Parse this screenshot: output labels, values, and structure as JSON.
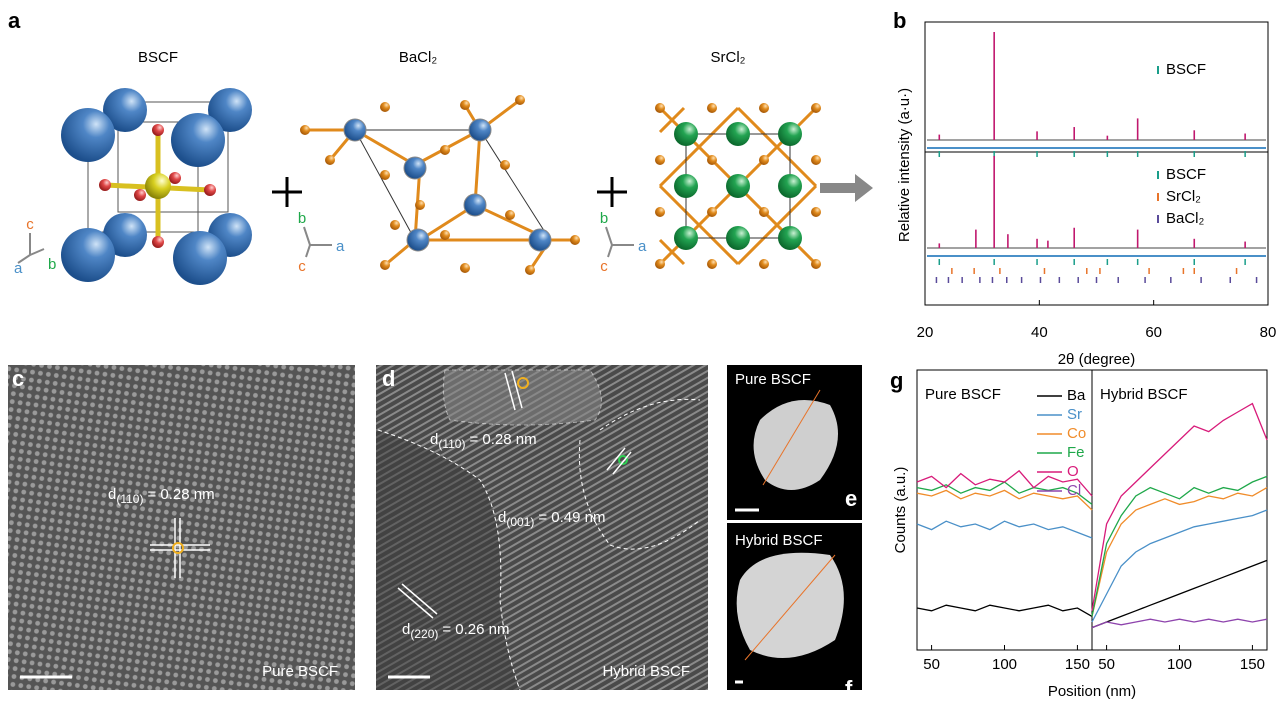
{
  "panels": {
    "a": "a",
    "b": "b",
    "c": "c",
    "d": "d",
    "e": "e",
    "f": "f",
    "g": "g"
  },
  "structures": [
    {
      "name": "BSCF",
      "axes": [
        "c",
        "a",
        "b"
      ]
    },
    {
      "name": "BaCl₂",
      "axes": [
        "b",
        "c",
        "a"
      ]
    },
    {
      "name": "SrCl₂",
      "axes": [
        "b",
        "c",
        "a"
      ]
    }
  ],
  "micrographs": {
    "c": {
      "d_labels": [
        {
          "d": "d",
          "index": "(110)",
          "text": "= 0.28 nm"
        }
      ],
      "caption": "Pure BSCF"
    },
    "d": {
      "d_labels": [
        {
          "d": "d",
          "index": "(110)",
          "text": "= 0.28 nm"
        },
        {
          "d": "d",
          "index": "(001)",
          "text": "= 0.49 nm"
        },
        {
          "d": "d",
          "index": "(220)",
          "text": "= 0.26 nm"
        }
      ],
      "caption": "Hybrid BSCF"
    },
    "e": {
      "caption": "Pure BSCF"
    },
    "f": {
      "caption": "Hybrid BSCF"
    }
  },
  "chart_data": [
    {
      "type": "xrd",
      "xlabel": "2θ (degree)",
      "ylabel": "Relative intensity (a·u·)",
      "xlim": [
        20,
        80
      ],
      "xticks": [
        20,
        40,
        60,
        80
      ],
      "color": "#c0186e",
      "patterns": [
        {
          "x": [
            22.5,
            32.1,
            39.6,
            46.1,
            51.9,
            57.2,
            67.1,
            76.0
          ],
          "values": [
            5,
            100,
            8,
            12,
            4,
            20,
            9,
            6
          ],
          "references": [
            {
              "name": "BSCF",
              "color": "#1a9e8a",
              "x": [
                22.5,
                32.1,
                39.6,
                46.1,
                51.9,
                57.2,
                67.1,
                76.0
              ]
            }
          ]
        },
        {
          "x": [
            22.5,
            28.9,
            32.1,
            34.5,
            39.6,
            41.5,
            46.1,
            57.2,
            67.1,
            76.0
          ],
          "values": [
            5,
            20,
            100,
            15,
            10,
            8,
            22,
            20,
            10,
            7
          ],
          "references": [
            {
              "name": "BSCF",
              "color": "#1a9e8a",
              "x": [
                22.5,
                32.1,
                39.6,
                46.1,
                51.9,
                57.2,
                67.1,
                76.0
              ]
            },
            {
              "name": "SrCl₂",
              "color": "#e8742a",
              "x": [
                24.7,
                28.6,
                33.1,
                40.9,
                48.3,
                50.6,
                59.2,
                65.2,
                67.1,
                74.5
              ]
            },
            {
              "name": "BaCl₂",
              "color": "#5a4b9a",
              "x": [
                22.0,
                24.1,
                26.5,
                29.6,
                31.8,
                34.3,
                36.9,
                40.2,
                43.5,
                46.8,
                50.0,
                53.8,
                58.5,
                63.0,
                68.3,
                73.4,
                78.0
              ]
            }
          ]
        }
      ]
    },
    {
      "type": "line",
      "xlabel": "Position (nm)",
      "ylabel": "Counts (a.u.)",
      "xlim": [
        40,
        160
      ],
      "xticks": [
        50,
        100,
        150
      ],
      "ylim": [
        0,
        100
      ],
      "segments": [
        "Pure BSCF",
        "Hybrid BSCF"
      ],
      "x": [
        40,
        50,
        60,
        70,
        80,
        90,
        100,
        110,
        120,
        130,
        140,
        150,
        160
      ],
      "series": [
        {
          "name": "Ba",
          "color": "#000000",
          "values": [
            15,
            14,
            16,
            15,
            14,
            16,
            15,
            14,
            15,
            16,
            14,
            15,
            12
          ],
          "values_hybrid": [
            8,
            10,
            12,
            14,
            16,
            18,
            20,
            22,
            24,
            26,
            28,
            30,
            32
          ]
        },
        {
          "name": "Sr",
          "color": "#4a90c8",
          "values": [
            45,
            43,
            46,
            44,
            45,
            43,
            46,
            44,
            45,
            43,
            44,
            42,
            40
          ],
          "values_hybrid": [
            10,
            20,
            30,
            35,
            38,
            40,
            42,
            44,
            45,
            46,
            47,
            48,
            50
          ]
        },
        {
          "name": "Co",
          "color": "#f08c2a",
          "values": [
            56,
            55,
            57,
            54,
            56,
            55,
            57,
            54,
            56,
            55,
            54,
            55,
            50
          ],
          "values_hybrid": [
            12,
            35,
            45,
            50,
            52,
            54,
            52,
            53,
            55,
            54,
            56,
            55,
            58
          ]
        },
        {
          "name": "Fe",
          "color": "#1fa84a",
          "values": [
            58,
            57,
            59,
            56,
            58,
            57,
            60,
            56,
            58,
            57,
            58,
            56,
            52
          ],
          "values_hybrid": [
            12,
            38,
            48,
            55,
            58,
            56,
            54,
            58,
            56,
            58,
            57,
            60,
            62
          ]
        },
        {
          "name": "O",
          "color": "#d81b7a",
          "values": [
            60,
            62,
            58,
            63,
            59,
            61,
            60,
            64,
            58,
            62,
            60,
            61,
            55
          ],
          "values_hybrid": [
            14,
            45,
            55,
            60,
            65,
            70,
            75,
            80,
            78,
            82,
            85,
            88,
            75
          ]
        },
        {
          "name": "Cl",
          "color": "#8e44ad",
          "values": [
            null,
            null,
            null,
            null,
            null,
            null,
            null,
            null,
            null,
            null,
            null,
            null,
            null
          ],
          "values_hybrid": [
            8,
            10,
            9,
            10,
            11,
            10,
            11,
            10,
            11,
            10,
            11,
            10,
            11
          ]
        }
      ]
    }
  ]
}
